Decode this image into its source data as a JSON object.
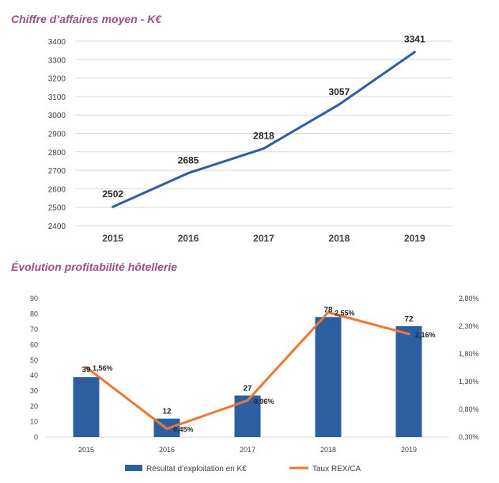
{
  "colors": {
    "title": "#9b4f88",
    "line1": "#2e5ea2",
    "bars": "#2e5ea2",
    "line2": "#ee7732",
    "grid": "#d9d9d9",
    "text": "#404040"
  },
  "chart_data": [
    {
      "type": "line",
      "title": "Chiffre d’affaires moyen - K€",
      "categories": [
        "2015",
        "2016",
        "2017",
        "2018",
        "2019"
      ],
      "series": [
        {
          "values": [
            2502,
            2685,
            2818,
            3057,
            3341
          ]
        }
      ],
      "data_labels": [
        "2502",
        "2685",
        "2818",
        "3057",
        "3341"
      ],
      "y_ticks": [
        "2400",
        "2500",
        "2600",
        "2700",
        "2800",
        "2900",
        "3000",
        "3100",
        "3200",
        "3300",
        "3400"
      ],
      "ylim": [
        2400,
        3400
      ],
      "grid": true
    },
    {
      "type": "bar",
      "title": "Évolution profitabilité hôtellerie",
      "categories": [
        "2015",
        "2016",
        "2017",
        "2018",
        "2019"
      ],
      "series": [
        {
          "name": "Résultat d’exploitation en K€",
          "type": "bar",
          "axis": "left",
          "values": [
            39,
            12,
            27,
            78,
            72
          ],
          "labels": [
            "39",
            "12",
            "27",
            "78",
            "72"
          ]
        },
        {
          "name": "Taux REX/CA",
          "type": "line",
          "axis": "right",
          "values": [
            1.56,
            0.45,
            0.96,
            2.55,
            2.16
          ],
          "labels": [
            "1,56%",
            "0,45%",
            "0,96%",
            "2,55%",
            "2,16%"
          ]
        }
      ],
      "y_left_ticks": [
        "0",
        "10",
        "20",
        "30",
        "40",
        "50",
        "60",
        "70",
        "80",
        "90"
      ],
      "ylim_left": [
        0,
        90
      ],
      "y_right_ticks": [
        "0,30%",
        "0,80%",
        "1,30%",
        "1,80%",
        "2,30%",
        "2,80%"
      ],
      "ylim_right": [
        0.3,
        2.8
      ],
      "legend_position": "bottom",
      "grid": false
    }
  ]
}
